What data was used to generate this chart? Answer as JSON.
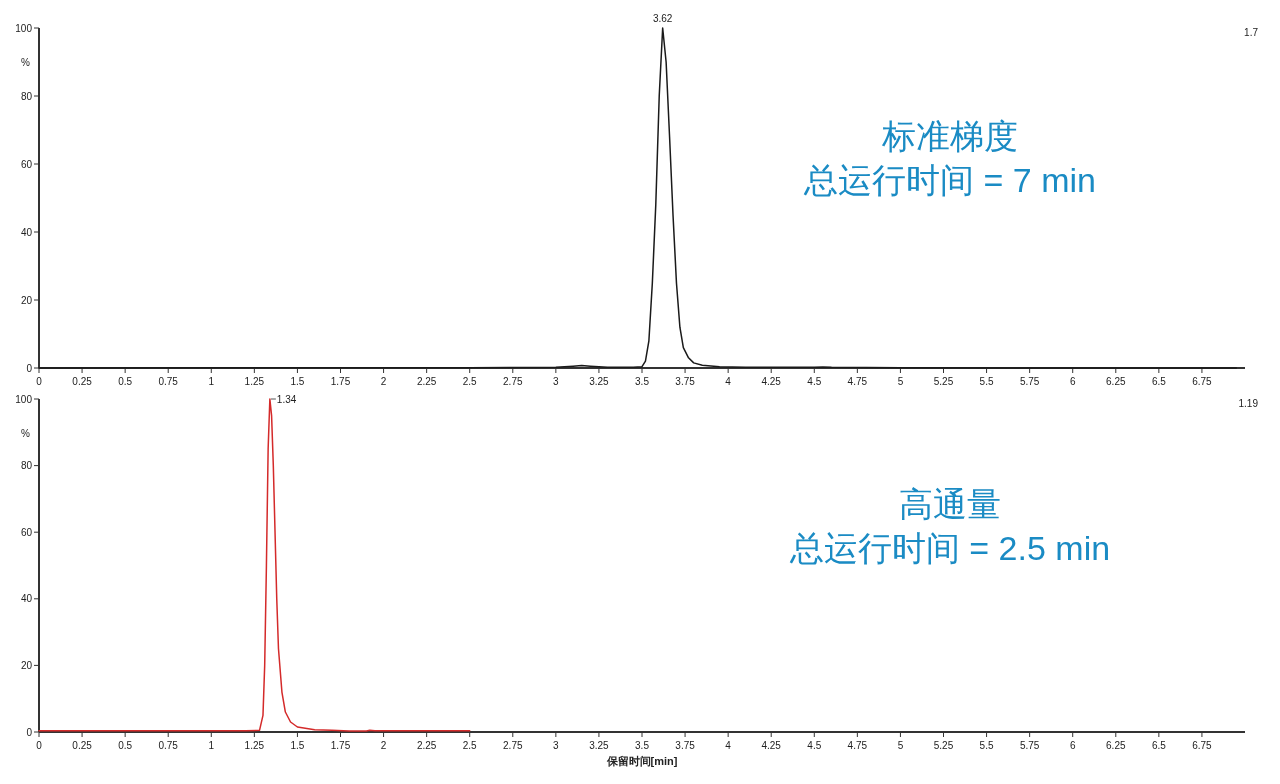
{
  "chart_data": [
    {
      "type": "line",
      "ylabel": "%",
      "xlim": [
        0,
        7
      ],
      "ylim": [
        0,
        100
      ],
      "xticks": [
        0,
        0.25,
        0.5,
        0.75,
        1,
        1.25,
        1.5,
        1.75,
        2,
        2.25,
        2.5,
        2.75,
        3,
        3.25,
        3.5,
        3.75,
        4,
        4.25,
        4.5,
        4.75,
        5,
        5.25,
        5.5,
        5.75,
        6,
        6.25,
        6.5,
        6.75
      ],
      "yticks": [
        0,
        20,
        40,
        60,
        80,
        100
      ],
      "grid": false,
      "marker": "none",
      "line_style": "solid",
      "series": [
        {
          "color": "#1a1a1a",
          "x": [
            0,
            2.5,
            3.0,
            3.1,
            3.15,
            3.2,
            3.3,
            3.45,
            3.5,
            3.52,
            3.54,
            3.56,
            3.58,
            3.6,
            3.62,
            3.64,
            3.66,
            3.68,
            3.7,
            3.72,
            3.74,
            3.77,
            3.8,
            3.85,
            3.95,
            4.1,
            4.5,
            4.55,
            4.6,
            5,
            6,
            6.95
          ],
          "values": [
            0,
            0.1,
            0.2,
            0.5,
            0.7,
            0.5,
            0.2,
            0.2,
            0.4,
            2,
            8,
            25,
            48,
            80,
            100,
            90,
            68,
            45,
            25,
            12,
            6,
            3,
            1.5,
            0.8,
            0.4,
            0.2,
            0.2,
            0.3,
            0.2,
            0.1,
            0,
            0
          ]
        }
      ],
      "annotations": [
        "1.7",
        {
          "text": "3.62",
          "x": 3.62,
          "y": 100
        },
        "标准梯度",
        "总运行时间 = 7 min"
      ]
    },
    {
      "type": "line",
      "xlabel": "保留时间[min]",
      "ylabel": "%",
      "xlim": [
        0,
        7
      ],
      "ylim": [
        0,
        100
      ],
      "xticks": [
        0,
        0.25,
        0.5,
        0.75,
        1,
        1.25,
        1.5,
        1.75,
        2,
        2.25,
        2.5,
        2.75,
        3,
        3.25,
        3.5,
        3.75,
        4,
        4.25,
        4.5,
        4.75,
        5,
        5.25,
        5.5,
        5.75,
        6,
        6.25,
        6.5,
        6.75
      ],
      "yticks": [
        0,
        20,
        40,
        60,
        80,
        100
      ],
      "grid": false,
      "marker": "none",
      "line_style": "solid",
      "series": [
        {
          "color": "#d42a2a",
          "x": [
            0,
            0.5,
            1,
            1.2,
            1.28,
            1.3,
            1.31,
            1.32,
            1.33,
            1.34,
            1.35,
            1.36,
            1.37,
            1.38,
            1.39,
            1.41,
            1.43,
            1.46,
            1.5,
            1.6,
            1.7,
            1.8,
            1.9,
            1.92,
            1.95,
            2.2,
            2.5
          ],
          "values": [
            0.4,
            0.4,
            0.4,
            0.4,
            0.5,
            5,
            20,
            50,
            85,
            100,
            95,
            80,
            60,
            40,
            25,
            12,
            6,
            3,
            1.5,
            0.7,
            0.5,
            0.3,
            0.3,
            0.5,
            0.4,
            0.4,
            0.4
          ]
        }
      ],
      "annotations": [
        "1.19",
        {
          "text": "1.34",
          "x": 1.34,
          "y": 100
        },
        "高通量",
        "总运行时间 = 2.5 min"
      ]
    }
  ]
}
